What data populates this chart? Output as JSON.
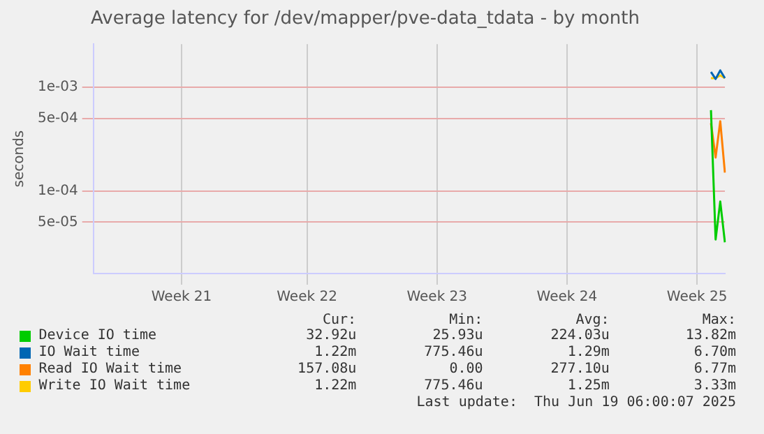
{
  "chart_data": {
    "type": "line",
    "title": "Average latency for /dev/mapper/pve-data_tdata - by month",
    "ylabel": "seconds",
    "log": "y",
    "grid": true,
    "legend": "bottom",
    "categories": [
      null,
      null,
      null,
      null,
      null,
      null,
      null,
      null,
      null,
      null,
      null,
      null,
      null,
      null,
      null,
      null,
      null,
      null,
      null,
      "Week 21",
      null,
      null,
      null,
      null,
      null,
      null,
      null,
      null,
      null,
      null,
      null,
      null,
      null,
      null,
      null,
      null,
      null,
      null,
      null,
      null,
      null,
      null,
      null,
      null,
      null,
      null,
      "Week 22",
      null,
      null,
      null,
      null,
      null,
      null,
      null,
      null,
      null,
      null,
      null,
      null,
      null,
      null,
      null,
      null,
      null,
      null,
      null,
      null,
      null,
      null,
      null,
      null,
      null,
      null,
      null,
      "Week 23",
      null,
      null,
      null,
      null,
      null,
      null,
      null,
      null,
      null,
      null,
      null,
      null,
      null,
      null,
      null,
      null,
      null,
      null,
      null,
      null,
      null,
      null,
      null,
      null,
      null,
      null,
      null,
      "Week 24",
      null,
      null,
      null,
      null,
      null,
      null,
      null,
      null,
      null,
      null,
      null,
      null,
      null,
      null,
      null,
      null,
      null,
      null,
      null,
      null,
      null,
      null,
      null,
      null,
      null,
      null,
      null,
      "Week 25",
      null,
      null,
      null,
      null,
      null,
      null
    ],
    "ylim": [
      1.6e-05,
      0.0026
    ],
    "yticks": [
      {
        "value": 0.001,
        "label": "1e-03"
      },
      {
        "value": 0.0005,
        "label": "5e-04"
      },
      {
        "value": 0.0001,
        "label": "1e-04"
      },
      {
        "value": 5e-05,
        "label": "5e-05"
      }
    ],
    "series": [
      {
        "name": "Device IO time",
        "color": "#00cc00",
        "values": [
          null,
          null,
          null,
          null,
          null,
          null,
          null,
          null,
          null,
          null,
          null,
          null,
          null,
          null,
          null,
          null,
          null,
          null,
          null,
          null,
          null,
          null,
          null,
          null,
          null,
          null,
          null,
          null,
          null,
          null,
          null,
          null,
          null,
          null,
          null,
          null,
          null,
          null,
          null,
          null,
          null,
          null,
          null,
          null,
          null,
          null,
          null,
          null,
          null,
          null,
          null,
          null,
          null,
          null,
          null,
          null,
          null,
          null,
          null,
          null,
          null,
          null,
          null,
          null,
          null,
          null,
          null,
          null,
          null,
          null,
          null,
          null,
          null,
          null,
          null,
          null,
          null,
          null,
          null,
          null,
          null,
          null,
          null,
          null,
          null,
          null,
          null,
          null,
          null,
          null,
          null,
          null,
          null,
          null,
          null,
          null,
          null,
          null,
          null,
          null,
          null,
          null,
          null,
          null,
          null,
          null,
          null,
          null,
          null,
          null,
          null,
          null,
          null,
          null,
          null,
          null,
          null,
          null,
          null,
          null,
          null,
          null,
          null,
          null,
          null,
          null,
          null,
          null,
          null,
          null,
          null,
          null,
          null,
          0.0006,
          3.4e-05,
          7.9e-05,
          3.2e-05
        ]
      },
      {
        "name": "IO Wait time",
        "color": "#0066b3",
        "values": [
          null,
          null,
          null,
          null,
          null,
          null,
          null,
          null,
          null,
          null,
          null,
          null,
          null,
          null,
          null,
          null,
          null,
          null,
          null,
          null,
          null,
          null,
          null,
          null,
          null,
          null,
          null,
          null,
          null,
          null,
          null,
          null,
          null,
          null,
          null,
          null,
          null,
          null,
          null,
          null,
          null,
          null,
          null,
          null,
          null,
          null,
          null,
          null,
          null,
          null,
          null,
          null,
          null,
          null,
          null,
          null,
          null,
          null,
          null,
          null,
          null,
          null,
          null,
          null,
          null,
          null,
          null,
          null,
          null,
          null,
          null,
          null,
          null,
          null,
          null,
          null,
          null,
          null,
          null,
          null,
          null,
          null,
          null,
          null,
          null,
          null,
          null,
          null,
          null,
          null,
          null,
          null,
          null,
          null,
          null,
          null,
          null,
          null,
          null,
          null,
          null,
          null,
          null,
          null,
          null,
          null,
          null,
          null,
          null,
          null,
          null,
          null,
          null,
          null,
          null,
          null,
          null,
          null,
          null,
          null,
          null,
          null,
          null,
          null,
          null,
          null,
          null,
          null,
          null,
          null,
          null,
          null,
          null,
          0.0014,
          0.0012,
          0.00145,
          0.00122
        ]
      },
      {
        "name": "Read IO Wait time",
        "color": "#ff8000",
        "values": [
          null,
          null,
          null,
          null,
          null,
          null,
          null,
          null,
          null,
          null,
          null,
          null,
          null,
          null,
          null,
          null,
          null,
          null,
          null,
          null,
          null,
          null,
          null,
          null,
          null,
          null,
          null,
          null,
          null,
          null,
          null,
          null,
          null,
          null,
          null,
          null,
          null,
          null,
          null,
          null,
          null,
          null,
          null,
          null,
          null,
          null,
          null,
          null,
          null,
          null,
          null,
          null,
          null,
          null,
          null,
          null,
          null,
          null,
          null,
          null,
          null,
          null,
          null,
          null,
          null,
          null,
          null,
          null,
          null,
          null,
          null,
          null,
          null,
          null,
          null,
          null,
          null,
          null,
          null,
          null,
          null,
          null,
          null,
          null,
          null,
          null,
          null,
          null,
          null,
          null,
          null,
          null,
          null,
          null,
          null,
          null,
          null,
          null,
          null,
          null,
          null,
          null,
          null,
          null,
          null,
          null,
          null,
          null,
          null,
          null,
          null,
          null,
          null,
          null,
          null,
          null,
          null,
          null,
          null,
          null,
          null,
          null,
          null,
          null,
          null,
          null,
          null,
          null,
          null,
          null,
          null,
          null,
          null,
          0.00045,
          0.00021,
          0.00047,
          0.00015
        ]
      },
      {
        "name": "Write IO Wait time",
        "color": "#ffcc00",
        "values": [
          null,
          null,
          null,
          null,
          null,
          null,
          null,
          null,
          null,
          null,
          null,
          null,
          null,
          null,
          null,
          null,
          null,
          null,
          null,
          null,
          null,
          null,
          null,
          null,
          null,
          null,
          null,
          null,
          null,
          null,
          null,
          null,
          null,
          null,
          null,
          null,
          null,
          null,
          null,
          null,
          null,
          null,
          null,
          null,
          null,
          null,
          null,
          null,
          null,
          null,
          null,
          null,
          null,
          null,
          null,
          null,
          null,
          null,
          null,
          null,
          null,
          null,
          null,
          null,
          null,
          null,
          null,
          null,
          null,
          null,
          null,
          null,
          null,
          null,
          null,
          null,
          null,
          null,
          null,
          null,
          null,
          null,
          null,
          null,
          null,
          null,
          null,
          null,
          null,
          null,
          null,
          null,
          null,
          null,
          null,
          null,
          null,
          null,
          null,
          null,
          null,
          null,
          null,
          null,
          null,
          null,
          null,
          null,
          null,
          null,
          null,
          null,
          null,
          null,
          null,
          null,
          null,
          null,
          null,
          null,
          null,
          null,
          null,
          null,
          null,
          null,
          null,
          null,
          null,
          null,
          null,
          null,
          null,
          0.00122,
          0.00122,
          0.0013,
          0.00122
        ]
      }
    ],
    "annotations": [
      "Cur:",
      "Min:",
      "Avg:",
      "Max:",
      "32.92u",
      "25.93u",
      "224.03u",
      "13.82m",
      "1.22m",
      "775.46u",
      "1.29m",
      "6.70m",
      "157.08u",
      "0.00",
      "277.10u",
      "6.77m",
      "1.22m",
      "775.46u",
      "1.25m",
      "3.33m",
      "Last update:  Thu Jun 19 06:00:07 2025"
    ]
  }
}
